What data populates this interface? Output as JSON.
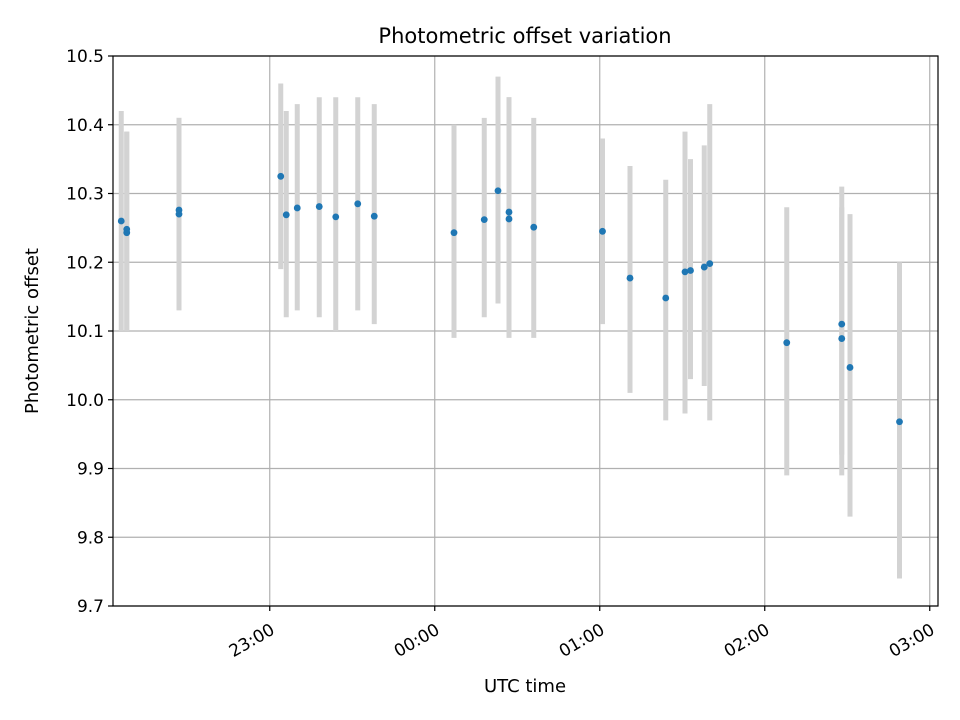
{
  "chart_data": {
    "type": "scatter",
    "title": "Photometric offset variation",
    "xlabel": "UTC time",
    "ylabel": "Photometric offset",
    "x_kind": "time",
    "xlim": [
      "22:03",
      "03:03"
    ],
    "ylim": [
      9.7,
      10.5
    ],
    "yticks": [
      9.7,
      9.8,
      9.9,
      10.0,
      10.1,
      10.2,
      10.3,
      10.4,
      10.5
    ],
    "xticks": [
      "23:00",
      "00:00",
      "01:00",
      "02:00",
      "03:00"
    ],
    "grid": true,
    "colors": {
      "point": "#1f77b4",
      "errorbar": "#d3d3d3",
      "grid": "#b0b0b0"
    },
    "points": [
      {
        "t": "22:06",
        "y": 10.26,
        "lo": 10.1,
        "hi": 10.42
      },
      {
        "t": "22:08",
        "y": 10.243,
        "lo": 10.1,
        "hi": 10.39
      },
      {
        "t": "22:08",
        "y": 10.248,
        "lo": 10.1,
        "hi": 10.39
      },
      {
        "t": "22:27",
        "y": 10.27,
        "lo": 10.13,
        "hi": 10.41
      },
      {
        "t": "22:27",
        "y": 10.276,
        "lo": 10.15,
        "hi": 10.41
      },
      {
        "t": "23:04",
        "y": 10.325,
        "lo": 10.19,
        "hi": 10.46
      },
      {
        "t": "23:06",
        "y": 10.269,
        "lo": 10.12,
        "hi": 10.42
      },
      {
        "t": "23:10",
        "y": 10.279,
        "lo": 10.13,
        "hi": 10.43
      },
      {
        "t": "23:18",
        "y": 10.281,
        "lo": 10.12,
        "hi": 10.44
      },
      {
        "t": "23:24",
        "y": 10.266,
        "lo": 10.1,
        "hi": 10.44
      },
      {
        "t": "23:32",
        "y": 10.285,
        "lo": 10.13,
        "hi": 10.44
      },
      {
        "t": "23:38",
        "y": 10.267,
        "lo": 10.11,
        "hi": 10.43
      },
      {
        "t": "00:07",
        "y": 10.243,
        "lo": 10.09,
        "hi": 10.4
      },
      {
        "t": "00:18",
        "y": 10.262,
        "lo": 10.12,
        "hi": 10.41
      },
      {
        "t": "00:23",
        "y": 10.304,
        "lo": 10.14,
        "hi": 10.47
      },
      {
        "t": "00:27",
        "y": 10.263,
        "lo": 10.09,
        "hi": 10.44
      },
      {
        "t": "00:27",
        "y": 10.273,
        "lo": 10.11,
        "hi": 10.44
      },
      {
        "t": "00:36",
        "y": 10.251,
        "lo": 10.09,
        "hi": 10.41
      },
      {
        "t": "01:01",
        "y": 10.245,
        "lo": 10.11,
        "hi": 10.38
      },
      {
        "t": "01:11",
        "y": 10.177,
        "lo": 10.01,
        "hi": 10.34
      },
      {
        "t": "01:24",
        "y": 10.148,
        "lo": 9.97,
        "hi": 10.32
      },
      {
        "t": "01:31",
        "y": 10.186,
        "lo": 9.98,
        "hi": 10.39
      },
      {
        "t": "01:33",
        "y": 10.188,
        "lo": 10.03,
        "hi": 10.35
      },
      {
        "t": "01:38",
        "y": 10.193,
        "lo": 10.02,
        "hi": 10.37
      },
      {
        "t": "01:40",
        "y": 10.198,
        "lo": 9.97,
        "hi": 10.43
      },
      {
        "t": "02:08",
        "y": 10.083,
        "lo": 9.89,
        "hi": 10.28
      },
      {
        "t": "02:28",
        "y": 10.089,
        "lo": 9.89,
        "hi": 10.28
      },
      {
        "t": "02:28",
        "y": 10.11,
        "lo": 9.92,
        "hi": 10.31
      },
      {
        "t": "02:31",
        "y": 10.047,
        "lo": 9.83,
        "hi": 10.27
      },
      {
        "t": "02:49",
        "y": 9.968,
        "lo": 9.74,
        "hi": 10.2
      }
    ]
  }
}
